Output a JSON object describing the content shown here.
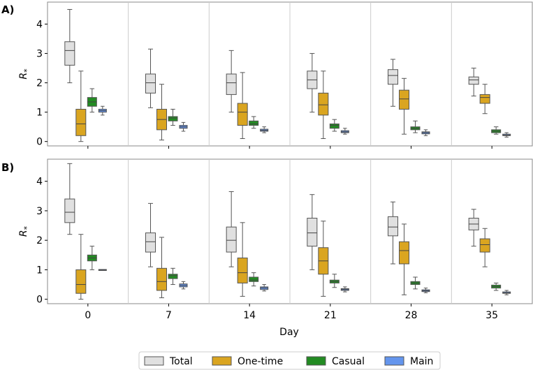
{
  "chart_data": [
    {
      "type": "boxplot",
      "panel": "A)",
      "ylabel": "R",
      "ylabel_sub": "*",
      "xlabel": "",
      "ylim": [
        -0.15,
        4.75
      ],
      "yticks": [
        "0",
        "1",
        "2",
        "3",
        "4"
      ],
      "categories": [
        "0",
        "7",
        "14",
        "21",
        "28",
        "35"
      ],
      "series": [
        {
          "name": "Total",
          "color": "#e0e0e0",
          "boxes": [
            {
              "whislo": 2.0,
              "q1": 2.6,
              "med": 3.1,
              "q3": 3.4,
              "whishi": 4.5
            },
            {
              "whislo": 1.15,
              "q1": 1.65,
              "med": 2.0,
              "q3": 2.3,
              "whishi": 3.15
            },
            {
              "whislo": 1.0,
              "q1": 1.6,
              "med": 2.0,
              "q3": 2.3,
              "whishi": 3.1
            },
            {
              "whislo": 1.0,
              "q1": 1.8,
              "med": 2.1,
              "q3": 2.4,
              "whishi": 3.0
            },
            {
              "whislo": 1.2,
              "q1": 1.95,
              "med": 2.25,
              "q3": 2.45,
              "whishi": 2.8
            },
            {
              "whislo": 1.55,
              "q1": 1.95,
              "med": 2.1,
              "q3": 2.2,
              "whishi": 2.5
            }
          ]
        },
        {
          "name": "One-time",
          "color": "#daa520",
          "boxes": [
            {
              "whislo": 0.0,
              "q1": 0.2,
              "med": 0.6,
              "q3": 1.1,
              "whishi": 2.4
            },
            {
              "whislo": 0.05,
              "q1": 0.4,
              "med": 0.75,
              "q3": 1.1,
              "whishi": 1.95
            },
            {
              "whislo": 0.1,
              "q1": 0.55,
              "med": 1.0,
              "q3": 1.3,
              "whishi": 2.35
            },
            {
              "whislo": 0.1,
              "q1": 0.9,
              "med": 1.25,
              "q3": 1.65,
              "whishi": 2.4
            },
            {
              "whislo": 0.25,
              "q1": 1.1,
              "med": 1.45,
              "q3": 1.75,
              "whishi": 2.15
            },
            {
              "whislo": 0.95,
              "q1": 1.3,
              "med": 1.5,
              "q3": 1.6,
              "whishi": 1.95
            }
          ]
        },
        {
          "name": "Casual",
          "color": "#228b22",
          "boxes": [
            {
              "whislo": 1.0,
              "q1": 1.2,
              "med": 1.35,
              "q3": 1.5,
              "whishi": 1.8
            },
            {
              "whislo": 0.55,
              "q1": 0.7,
              "med": 0.8,
              "q3": 0.85,
              "whishi": 1.1
            },
            {
              "whislo": 0.45,
              "q1": 0.55,
              "med": 0.6,
              "q3": 0.7,
              "whishi": 0.85
            },
            {
              "whislo": 0.35,
              "q1": 0.45,
              "med": 0.55,
              "q3": 0.6,
              "whishi": 0.75
            },
            {
              "whislo": 0.3,
              "q1": 0.4,
              "med": 0.45,
              "q3": 0.5,
              "whishi": 0.7
            },
            {
              "whislo": 0.25,
              "q1": 0.3,
              "med": 0.35,
              "q3": 0.4,
              "whishi": 0.5
            }
          ]
        },
        {
          "name": "Main",
          "color": "#6495ed",
          "boxes": [
            {
              "whislo": 0.9,
              "q1": 1.0,
              "med": 1.05,
              "q3": 1.1,
              "whishi": 1.2
            },
            {
              "whislo": 0.35,
              "q1": 0.45,
              "med": 0.5,
              "q3": 0.55,
              "whishi": 0.65
            },
            {
              "whislo": 0.3,
              "q1": 0.35,
              "med": 0.38,
              "q3": 0.42,
              "whishi": 0.5
            },
            {
              "whislo": 0.25,
              "q1": 0.3,
              "med": 0.33,
              "q3": 0.37,
              "whishi": 0.45
            },
            {
              "whislo": 0.2,
              "q1": 0.26,
              "med": 0.3,
              "q3": 0.33,
              "whishi": 0.4
            },
            {
              "whislo": 0.15,
              "q1": 0.2,
              "med": 0.22,
              "q3": 0.25,
              "whishi": 0.3
            }
          ]
        }
      ]
    },
    {
      "type": "boxplot",
      "panel": "B)",
      "ylabel": "R",
      "ylabel_sub": "*",
      "xlabel": "Day",
      "ylim": [
        -0.15,
        4.75
      ],
      "yticks": [
        "0",
        "1",
        "2",
        "3",
        "4"
      ],
      "categories": [
        "0",
        "7",
        "14",
        "21",
        "28",
        "35"
      ],
      "series": [
        {
          "name": "Total",
          "color": "#e0e0e0",
          "boxes": [
            {
              "whislo": 2.2,
              "q1": 2.6,
              "med": 2.95,
              "q3": 3.4,
              "whishi": 4.6
            },
            {
              "whislo": 1.1,
              "q1": 1.6,
              "med": 1.95,
              "q3": 2.25,
              "whishi": 3.25
            },
            {
              "whislo": 1.1,
              "q1": 1.6,
              "med": 2.0,
              "q3": 2.45,
              "whishi": 3.65
            },
            {
              "whislo": 1.0,
              "q1": 1.8,
              "med": 2.25,
              "q3": 2.75,
              "whishi": 3.55
            },
            {
              "whislo": 1.2,
              "q1": 2.15,
              "med": 2.45,
              "q3": 2.8,
              "whishi": 3.3
            },
            {
              "whislo": 1.8,
              "q1": 2.35,
              "med": 2.55,
              "q3": 2.75,
              "whishi": 3.05
            }
          ]
        },
        {
          "name": "One-time",
          "color": "#daa520",
          "boxes": [
            {
              "whislo": 0.0,
              "q1": 0.2,
              "med": 0.5,
              "q3": 1.0,
              "whishi": 2.2
            },
            {
              "whislo": 0.05,
              "q1": 0.3,
              "med": 0.6,
              "q3": 1.05,
              "whishi": 2.1
            },
            {
              "whislo": 0.1,
              "q1": 0.55,
              "med": 0.9,
              "q3": 1.4,
              "whishi": 2.6
            },
            {
              "whislo": 0.1,
              "q1": 0.85,
              "med": 1.3,
              "q3": 1.75,
              "whishi": 2.65
            },
            {
              "whislo": 0.15,
              "q1": 1.2,
              "med": 1.65,
              "q3": 1.95,
              "whishi": 2.55
            },
            {
              "whislo": 1.1,
              "q1": 1.6,
              "med": 1.85,
              "q3": 2.05,
              "whishi": 2.4
            }
          ]
        },
        {
          "name": "Casual",
          "color": "#228b22",
          "boxes": [
            {
              "whislo": 1.0,
              "q1": 1.3,
              "med": 1.4,
              "q3": 1.5,
              "whishi": 1.8
            },
            {
              "whislo": 0.5,
              "q1": 0.7,
              "med": 0.8,
              "q3": 0.85,
              "whishi": 1.05
            },
            {
              "whislo": 0.45,
              "q1": 0.6,
              "med": 0.65,
              "q3": 0.75,
              "whishi": 0.9
            },
            {
              "whislo": 0.4,
              "q1": 0.55,
              "med": 0.6,
              "q3": 0.65,
              "whishi": 0.85
            },
            {
              "whislo": 0.35,
              "q1": 0.5,
              "med": 0.55,
              "q3": 0.6,
              "whishi": 0.75
            },
            {
              "whislo": 0.3,
              "q1": 0.38,
              "med": 0.43,
              "q3": 0.48,
              "whishi": 0.55
            }
          ]
        },
        {
          "name": "Main",
          "color": "#6495ed",
          "boxes": [
            {
              "whislo": 0.99,
              "q1": 0.99,
              "med": 1.0,
              "q3": 1.01,
              "whishi": 1.01
            },
            {
              "whislo": 0.35,
              "q1": 0.42,
              "med": 0.47,
              "q3": 0.52,
              "whishi": 0.6
            },
            {
              "whislo": 0.28,
              "q1": 0.33,
              "med": 0.38,
              "q3": 0.42,
              "whishi": 0.5
            },
            {
              "whislo": 0.25,
              "q1": 0.3,
              "med": 0.33,
              "q3": 0.36,
              "whishi": 0.42
            },
            {
              "whislo": 0.22,
              "q1": 0.26,
              "med": 0.29,
              "q3": 0.32,
              "whishi": 0.38
            },
            {
              "whislo": 0.15,
              "q1": 0.2,
              "med": 0.22,
              "q3": 0.25,
              "whishi": 0.3
            }
          ]
        }
      ]
    }
  ],
  "legend": {
    "position": "bottom-center",
    "items": [
      {
        "label": "Total",
        "color": "#e0e0e0"
      },
      {
        "label": "One-time",
        "color": "#daa520"
      },
      {
        "label": "Casual",
        "color": "#228b22"
      },
      {
        "label": "Main",
        "color": "#6495ed"
      }
    ]
  },
  "colors": {
    "box_edge": "#555555",
    "median": "#444444",
    "whisker": "#555555",
    "spine": "#888888",
    "separator": "#cccccc"
  }
}
